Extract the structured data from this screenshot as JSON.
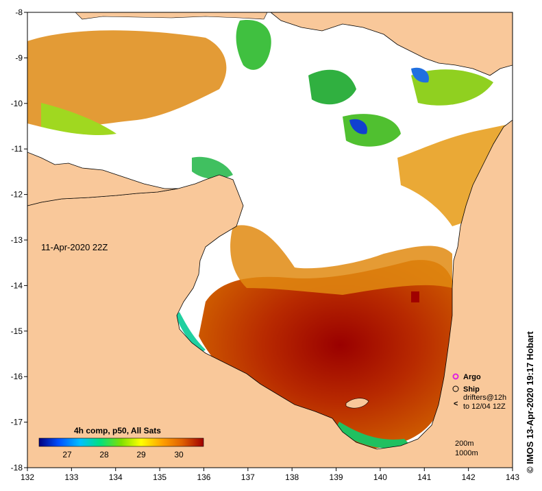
{
  "map": {
    "date_label": "11-Apr-2020 22Z",
    "x_ticks": [
      "132",
      "133",
      "134",
      "135",
      "136",
      "137",
      "138",
      "139",
      "140",
      "141",
      "142",
      "143"
    ],
    "y_ticks": [
      "-8",
      "-9",
      "-10",
      "-11",
      "-12",
      "-13",
      "-14",
      "-15",
      "-16",
      "-17",
      "-18"
    ],
    "credit": "© IMOS 13-Apr-2020 19:17 Hobart",
    "colors": {
      "land": "#f9c89a",
      "no_data": "#ffffff",
      "coast": "#000000"
    }
  },
  "colorbar": {
    "title": "4h comp, p50, All Sats",
    "ticks": [
      "27",
      "28",
      "29",
      "30"
    ],
    "colors": [
      "#000080",
      "#0050ff",
      "#00c0ff",
      "#00e080",
      "#80e000",
      "#ffff00",
      "#ffa000",
      "#e06000",
      "#a00000"
    ]
  },
  "legend": {
    "argo": "Argo",
    "ship": "Ship",
    "drifters_line1": "drifters@12h",
    "drifters_line2": "to 12/04 12Z",
    "argo_color": "#e020e0",
    "drifter_color": "#ff00ff"
  },
  "depth": {
    "line1": "200m",
    "line2": "1000m"
  }
}
